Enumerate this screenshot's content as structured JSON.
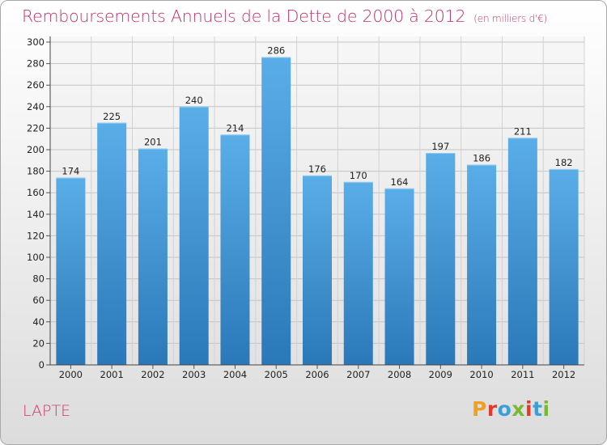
{
  "header": {
    "title": "Remboursements Annuels de la Dette de 2000 à 2012",
    "unit": "(en milliers d'€)"
  },
  "footer": {
    "commune": "LAPTE",
    "logo_text": "Proxiti"
  },
  "colors": {
    "title": "#c0346a",
    "bar_top": "#5aaee8",
    "bar_bottom": "#2a78b8",
    "logo": [
      "#f0a020",
      "#e23a2a",
      "#3aa0d8",
      "#7ab830",
      "#e23a2a",
      "#3aa0d8",
      "#7ab830"
    ]
  },
  "chart_data": {
    "type": "bar",
    "title": "Remboursements Annuels de la Dette de 2000 à 2012",
    "subtitle": "(en milliers d'€)",
    "categories": [
      "2000",
      "2001",
      "2002",
      "2003",
      "2004",
      "2005",
      "2006",
      "2007",
      "2008",
      "2009",
      "2010",
      "2011",
      "2012"
    ],
    "values": [
      174,
      225,
      201,
      240,
      214,
      286,
      176,
      170,
      164,
      197,
      186,
      211,
      182
    ],
    "ylim": [
      0,
      300
    ],
    "yticks": [
      0,
      20,
      40,
      60,
      80,
      100,
      120,
      140,
      160,
      180,
      200,
      220,
      240,
      260,
      280,
      300
    ],
    "grid": true,
    "xlabel": "",
    "ylabel": ""
  }
}
